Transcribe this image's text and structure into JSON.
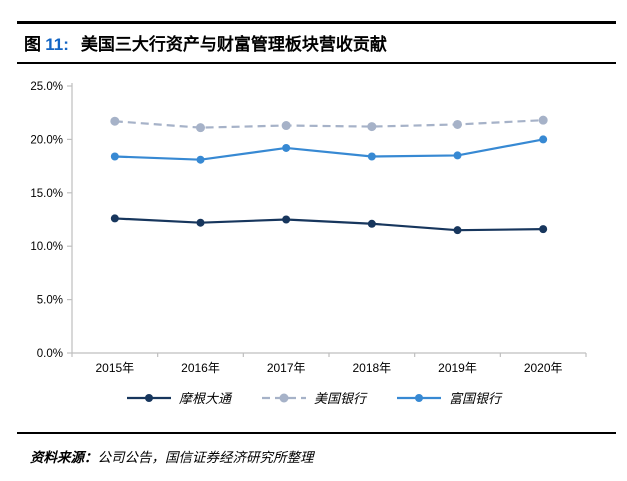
{
  "title": {
    "figure_prefix": "图",
    "figure_number": "11:",
    "text": "美国三大行资产与财富管理板块营收贡献"
  },
  "source": {
    "label": "资料来源：",
    "text": "公司公告，国信证券经济研究所整理"
  },
  "colors": {
    "figure_number_blue": "#1365c4",
    "rule_black": "#000000",
    "axis_gray": "#bfbfbf",
    "jpmorgan_navy": "#17365d",
    "bofa_gray": "#a6b2c8",
    "wellsfargo_blue": "#3789d3"
  },
  "chart_data": {
    "type": "line",
    "title": "美国三大行资产与财富管理板块营收贡献",
    "categories": [
      "2015年",
      "2016年",
      "2017年",
      "2018年",
      "2019年",
      "2020年"
    ],
    "series": [
      {
        "id": "jpmorgan",
        "name": "摩根大通",
        "values": [
          12.6,
          12.2,
          12.5,
          12.1,
          11.5,
          11.6
        ],
        "color": "#17365d",
        "line_style": "solid"
      },
      {
        "id": "bofa",
        "name": "美国银行",
        "values": [
          21.7,
          21.1,
          21.3,
          21.2,
          21.4,
          21.8
        ],
        "color": "#a6b2c8",
        "line_style": "dashed"
      },
      {
        "id": "wellsfargo",
        "name": "富国银行",
        "values": [
          18.4,
          18.1,
          19.2,
          18.4,
          18.5,
          20.0
        ],
        "color": "#3789d3",
        "line_style": "solid"
      }
    ],
    "xlabel": "",
    "ylabel": "",
    "ylim": [
      0,
      25
    ],
    "ytick_step": 5,
    "ytick_labels": [
      "0.0%",
      "5.0%",
      "10.0%",
      "15.0%",
      "20.0%",
      "25.0%"
    ],
    "grid": false,
    "legend_position": "bottom"
  }
}
